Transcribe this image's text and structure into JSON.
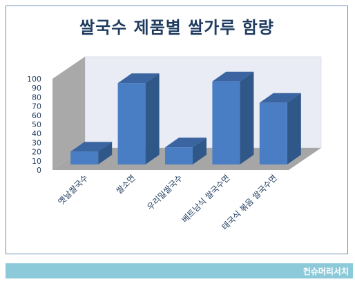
{
  "chart_data": {
    "type": "bar",
    "title": "쌀국수 제품별 쌀가루 함량",
    "categories": [
      "옛날쌀국수",
      "쌀소면",
      "우리밀쌀국수",
      "베트남식 쌀국수면",
      "태국식 볶음 쌀국수면"
    ],
    "values": [
      15,
      95,
      20,
      97,
      72
    ],
    "yticks": [
      0,
      10,
      20,
      30,
      40,
      50,
      60,
      70,
      80,
      90,
      100
    ],
    "ylim": [
      0,
      100
    ],
    "grid": false,
    "legend": "none"
  },
  "footer": {
    "text": "컨슈머리서치"
  },
  "colors": {
    "bar_front": "#4a7ec4",
    "bar_side": "#2f5788",
    "bar_top": "#3a65a0",
    "back_wall": "#e9ecf5",
    "side_wall": "#a9a9a9",
    "floor": "#a6a6a6",
    "title": "#1f3b5f",
    "axis_text": "#1f3b5f",
    "footer_bg": "#8dcad9"
  }
}
